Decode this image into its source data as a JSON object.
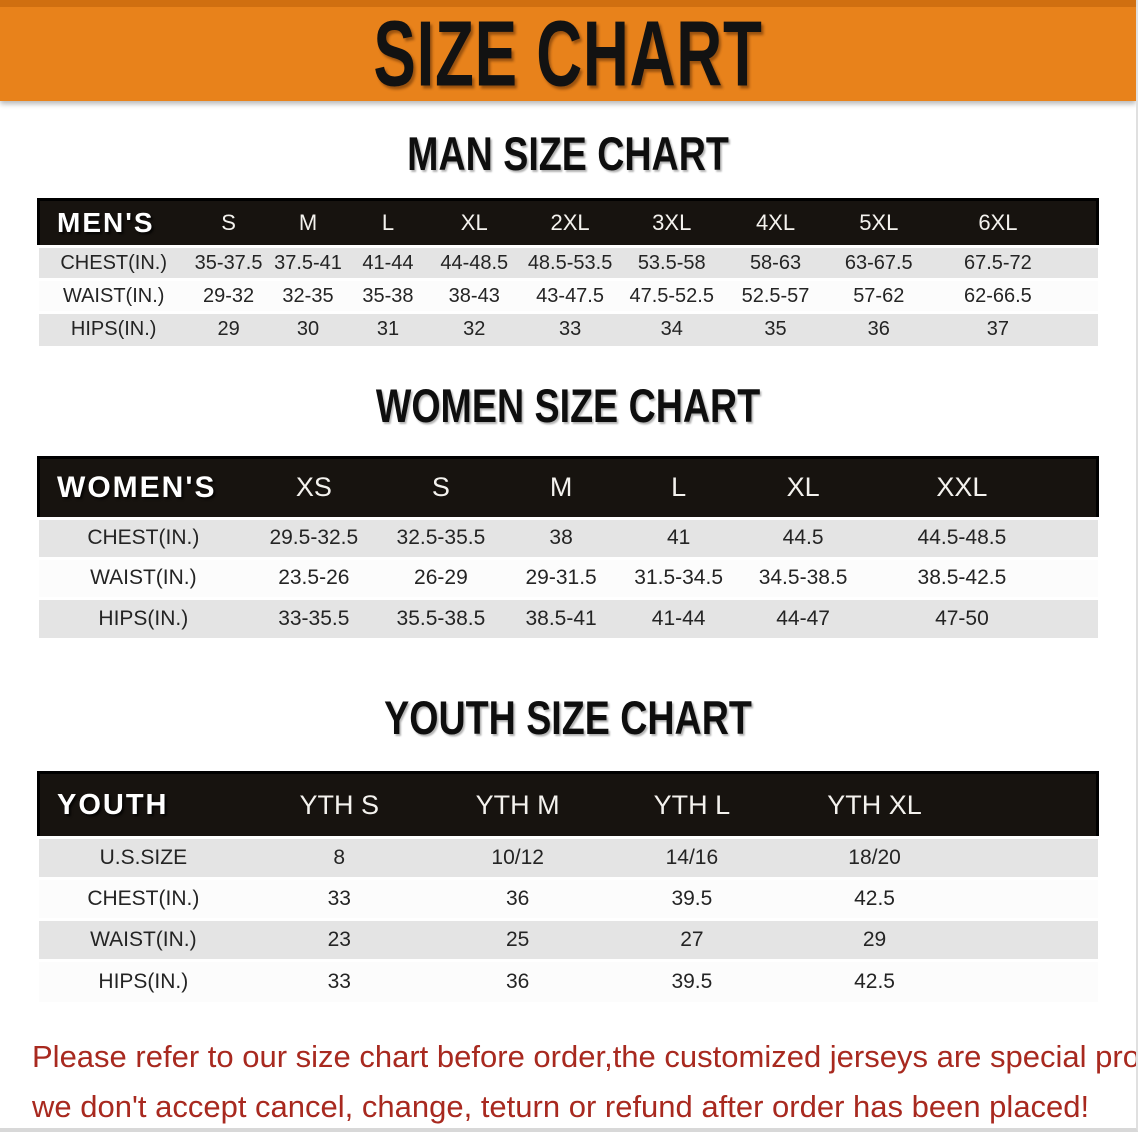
{
  "banner": {
    "title": "SIZE CHART"
  },
  "sections": [
    {
      "title": "MAN SIZE CHART",
      "corner_label": "MEN'S",
      "columns": [
        "S",
        "M",
        "L",
        "XL",
        "2XL",
        "3XL",
        "4XL",
        "5XL",
        "6XL"
      ],
      "rows": [
        {
          "label": "CHEST(IN.)",
          "values": [
            "35-37.5",
            "37.5-41",
            "41-44",
            "44-48.5",
            "48.5-53.5",
            "53.5-58",
            "58-63",
            "63-67.5",
            "67.5-72"
          ]
        },
        {
          "label": "WAIST(IN.)",
          "values": [
            "29-32",
            "32-35",
            "35-38",
            "38-43",
            "43-47.5",
            "47.5-52.5",
            "52.5-57",
            "57-62",
            "62-66.5"
          ]
        },
        {
          "label": "HIPS(IN.)",
          "values": [
            "29",
            "30",
            "31",
            "32",
            "33",
            "34",
            "35",
            "36",
            "37"
          ]
        }
      ]
    },
    {
      "title": "WOMEN SIZE CHART",
      "corner_label": "WOMEN'S",
      "columns": [
        "XS",
        "S",
        "M",
        "L",
        "XL",
        "XXL"
      ],
      "rows": [
        {
          "label": "CHEST(IN.)",
          "values": [
            "29.5-32.5",
            "32.5-35.5",
            "38",
            "41",
            "44.5",
            "44.5-48.5"
          ]
        },
        {
          "label": "WAIST(IN.)",
          "values": [
            "23.5-26",
            "26-29",
            "29-31.5",
            "31.5-34.5",
            "34.5-38.5",
            "38.5-42.5"
          ]
        },
        {
          "label": "HIPS(IN.)",
          "values": [
            "33-35.5",
            "35.5-38.5",
            "38.5-41",
            "41-44",
            "44-47",
            "47-50"
          ]
        }
      ]
    },
    {
      "title": "YOUTH SIZE CHART",
      "corner_label": "YOUTH",
      "columns": [
        "YTH S",
        "YTH M",
        "YTH L",
        "YTH XL"
      ],
      "rows": [
        {
          "label": "U.S.SIZE",
          "values": [
            "8",
            "10/12",
            "14/16",
            "18/20"
          ]
        },
        {
          "label": "CHEST(IN.)",
          "values": [
            "33",
            "36",
            "39.5",
            "42.5"
          ]
        },
        {
          "label": "WAIST(IN.)",
          "values": [
            "23",
            "25",
            "27",
            "29"
          ]
        },
        {
          "label": "HIPS(IN.)",
          "values": [
            "33",
            "36",
            "39.5",
            "42.5"
          ]
        }
      ]
    }
  ],
  "footer": {
    "line1": "Please refer to our size chart before order,the customized jerseys are special products,",
    "line2": "we don't accept cancel, change, teturn or refund after order has been placed!"
  },
  "colors": {
    "banner_orange": "#E8821B",
    "header_black": "#17130F",
    "row_gray": "#E4E4E4",
    "row_white": "#FCFCFC",
    "footer_red": "#A8291F"
  }
}
